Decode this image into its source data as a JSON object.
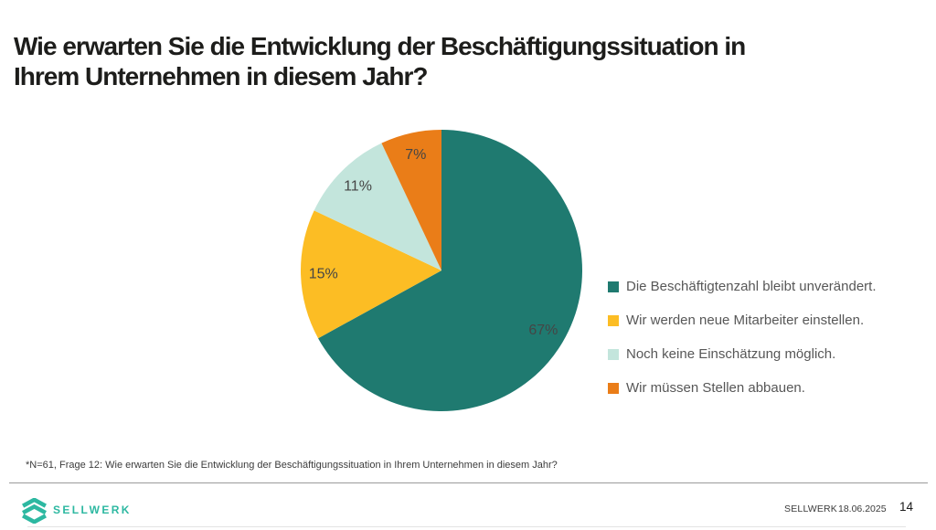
{
  "page": {
    "title": "Wie erwarten Sie die Entwicklung der Beschäftigungssituation in Ihrem Unternehmen in diesem Jahr?",
    "title_lines": [
      "Wie erwarten Sie die Entwicklung der Beschäftigungssituation in",
      "Ihrem Unternehmen in diesem Jahr?"
    ],
    "footnote": "*N=61, Frage 12: Wie erwarten Sie die Entwicklung der Beschäftigungssituation in Ihrem Unternehmen in diesem Jahr?"
  },
  "chart_data": {
    "type": "pie",
    "title": "Wie erwarten Sie die Entwicklung der Beschäftigungssituation in Ihrem Unternehmen in diesem Jahr?",
    "labels": [
      "Die Beschäftigtenzahl bleibt unverändert.",
      "Wir werden neue Mitarbeiter einstellen.",
      "Noch keine Einschätzung möglich.",
      "Wir müssen Stellen abbauen."
    ],
    "values": [
      67,
      15,
      11,
      7
    ],
    "unit": "%",
    "colors": [
      "#1f7a70",
      "#fcbd24",
      "#c3e5dc",
      "#ea7d18"
    ],
    "start_angle_deg": 0,
    "direction": "clockwise",
    "legend_position": "right"
  },
  "footer": {
    "logo_text": "SELLWERK",
    "company": "SELLWERK",
    "date": "18.06.2025",
    "page_number": "14"
  },
  "colors": {
    "brand_teal": "#2db8a1",
    "title_text": "#1d1d1b",
    "legend_text": "#575757",
    "slice_label_text": "#454545"
  }
}
